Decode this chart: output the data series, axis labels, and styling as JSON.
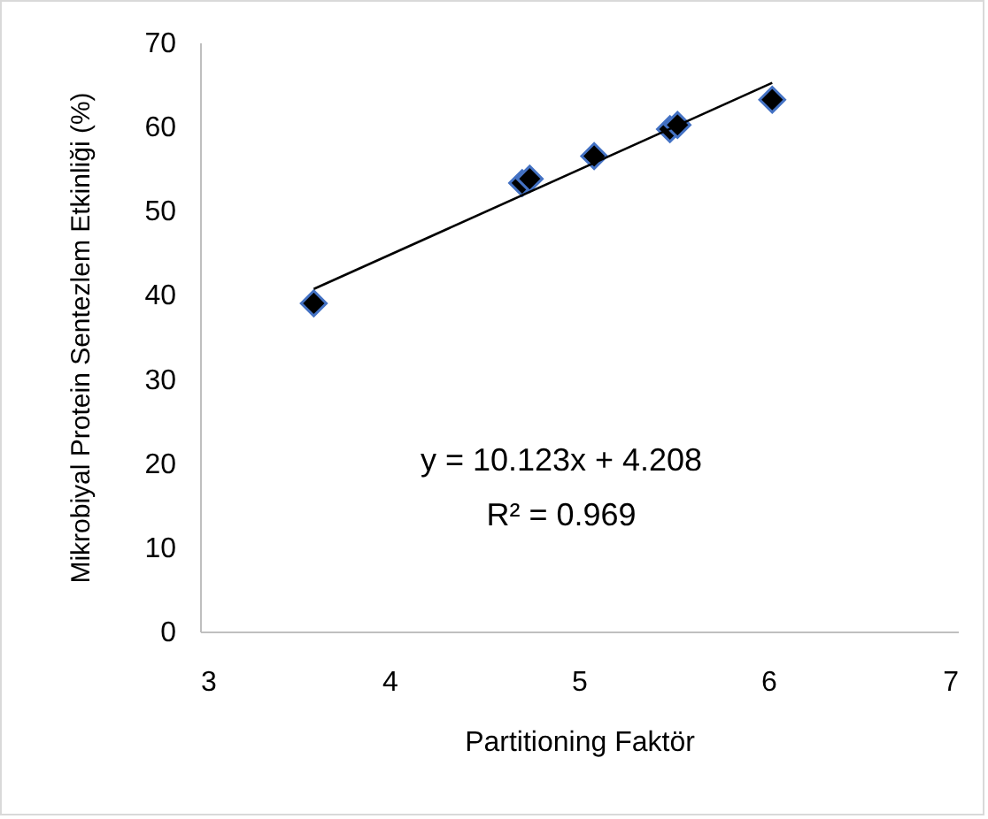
{
  "chart_data": {
    "type": "scatter",
    "xlabel": "Partitioning Faktör",
    "ylabel": "Mikrobiyal Protein Sentezlem Etkinliği (%)",
    "x": [
      3.6,
      4.7,
      4.74,
      5.08,
      5.48,
      5.52,
      6.02
    ],
    "series": [
      {
        "color": "#000000",
        "values": [
          39,
          53.3,
          53.8,
          56.5,
          59.7,
          60.2,
          63.2
        ],
        "marker": "diamond"
      },
      {
        "type": "line",
        "color": "#000000",
        "x": [
          3.6,
          6.02
        ],
        "values": [
          40.7,
          65.2
        ],
        "marker": "none"
      }
    ],
    "xlim": [
      3,
      7
    ],
    "xticks": [
      3,
      4,
      5,
      6,
      7
    ],
    "ylim": [
      0,
      70
    ],
    "yticks": [
      0,
      10,
      20,
      30,
      40,
      50,
      60,
      70
    ],
    "grid": false,
    "annotations": [
      "y = 10.123x + 4.208",
      "R² = 0.969"
    ]
  }
}
